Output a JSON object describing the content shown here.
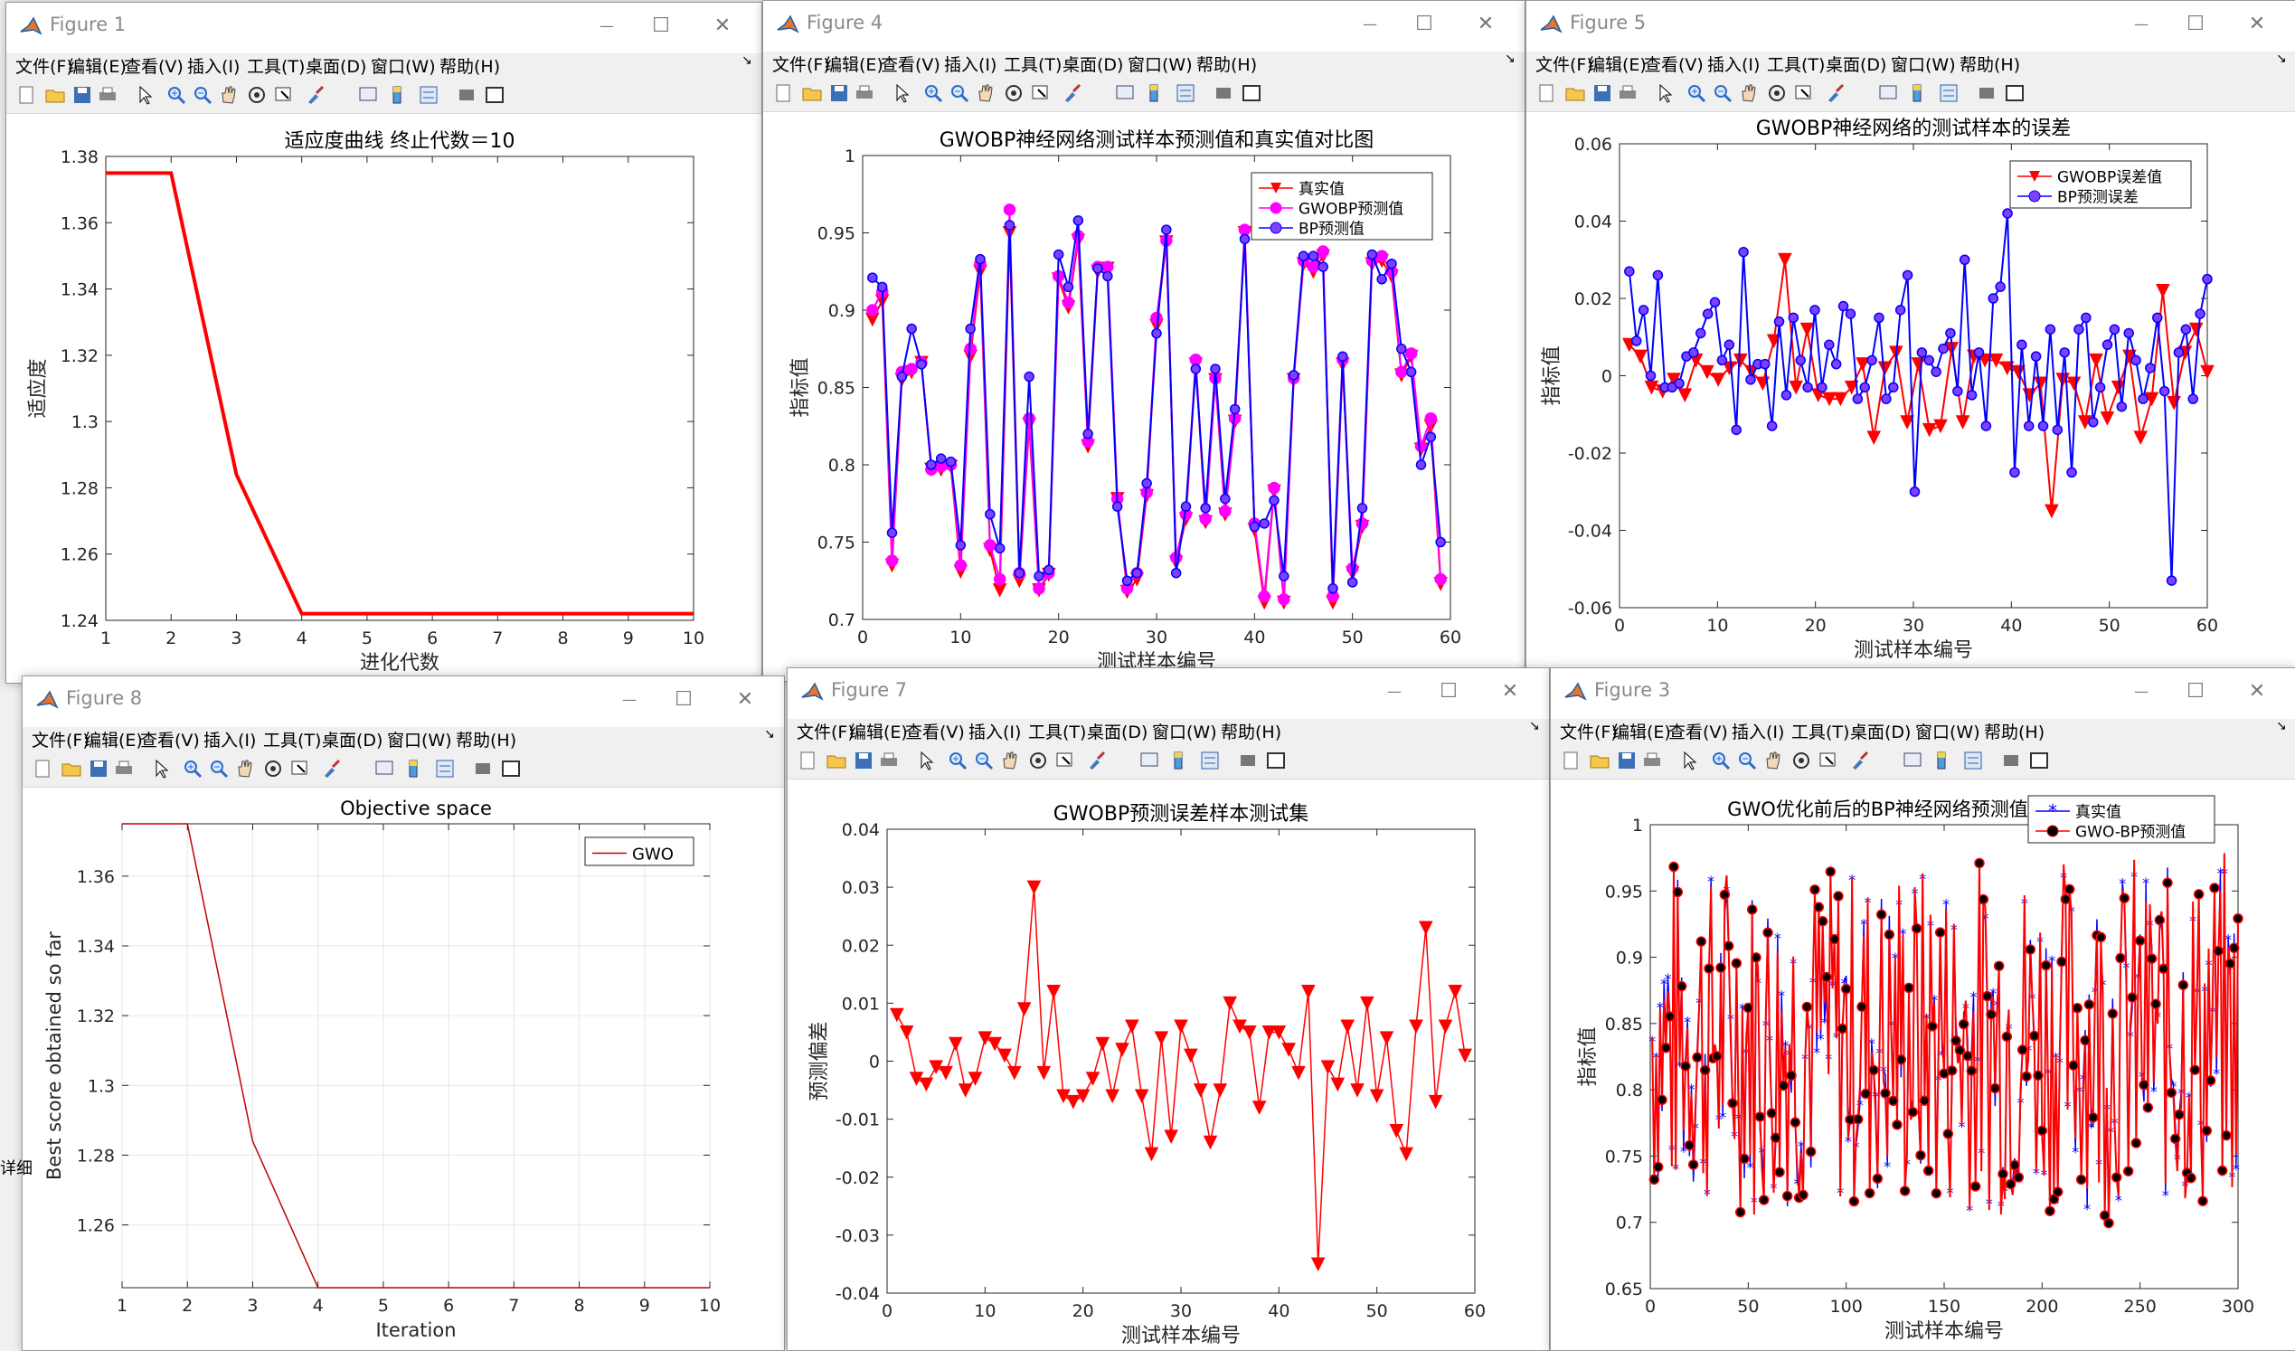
{
  "colors": {
    "red": "#ff0000",
    "magenta": "#ff00ff",
    "blue": "#0000ff",
    "darkred": "#c00000"
  },
  "menu": [
    "文件(F)",
    "编辑(E)",
    "查看(V)",
    "插入(I)",
    "工具(T)",
    "桌面(D)",
    "窗口(W)",
    "帮助(H)"
  ],
  "windows": {
    "fig1": {
      "title": "Figure 1"
    },
    "fig4": {
      "title": "Figure 4"
    },
    "fig5": {
      "title": "Figure 5"
    },
    "fig8": {
      "title": "Figure 8"
    },
    "fig7": {
      "title": "Figure 7"
    },
    "fig3": {
      "title": "Figure 3"
    }
  },
  "side_text": "详细",
  "chart_data": [
    {
      "id": "fig1",
      "type": "line",
      "title": "适应度曲线  终止代数＝10",
      "xlabel": "进化代数",
      "ylabel": "适应度",
      "xlim": [
        1,
        10
      ],
      "ylim": [
        1.24,
        1.38
      ],
      "xticks": [
        1,
        2,
        3,
        4,
        5,
        6,
        7,
        8,
        9,
        10
      ],
      "yticks": [
        1.24,
        1.26,
        1.28,
        1.3,
        1.32,
        1.34,
        1.36,
        1.38
      ],
      "x": [
        1,
        2,
        3,
        4,
        5,
        6,
        7,
        8,
        9,
        10
      ],
      "y": [
        1.375,
        1.375,
        1.284,
        1.242,
        1.242,
        1.242,
        1.242,
        1.242,
        1.242,
        1.242
      ]
    },
    {
      "id": "fig4",
      "type": "line",
      "title": "GWOBP神经网络测试样本预测值和真实值对比图",
      "xlabel": "测试样本编号",
      "ylabel": "指标值",
      "xlim": [
        0,
        60
      ],
      "ylim": [
        0.7,
        1
      ],
      "xticks": [
        0,
        10,
        20,
        30,
        40,
        50,
        60
      ],
      "yticks": [
        0.7,
        0.75,
        0.8,
        0.85,
        0.9,
        0.95,
        1
      ],
      "legend": [
        "真实值",
        "GWOBP预测值",
        "BP预测值"
      ],
      "series": [
        {
          "name": "真实值",
          "values": [
            0.894,
            0.906,
            0.735,
            0.855,
            0.86,
            0.866,
            0.797,
            0.797,
            0.799,
            0.731,
            0.87,
            0.925,
            0.745,
            0.719,
            0.95,
            0.725,
            0.826,
            0.719,
            0.729,
            0.92,
            0.902,
            0.945,
            0.812,
            0.925,
            0.927,
            0.778,
            0.718,
            0.726,
            0.78,
            0.89,
            0.944,
            0.737,
            0.765,
            0.865,
            0.763,
            0.855,
            0.768,
            0.828,
            0.95,
            0.758,
            0.711,
            0.783,
            0.711,
            0.855,
            0.93,
            0.925,
            0.935,
            0.711,
            0.865,
            0.73,
            0.76,
            0.93,
            0.932,
            0.922,
            0.858,
            0.87,
            0.81,
            0.825,
            0.723
          ]
        },
        {
          "name": "GWOBP预测值",
          "values": [
            0.9,
            0.912,
            0.738,
            0.86,
            0.862,
            0.866,
            0.797,
            0.799,
            0.8,
            0.735,
            0.875,
            0.93,
            0.748,
            0.726,
            0.965,
            0.73,
            0.83,
            0.72,
            0.73,
            0.922,
            0.905,
            0.948,
            0.815,
            0.928,
            0.928,
            0.778,
            0.72,
            0.73,
            0.782,
            0.895,
            0.945,
            0.74,
            0.768,
            0.868,
            0.765,
            0.856,
            0.77,
            0.83,
            0.952,
            0.762,
            0.715,
            0.785,
            0.713,
            0.856,
            0.932,
            0.928,
            0.938,
            0.715,
            0.868,
            0.733,
            0.762,
            0.932,
            0.935,
            0.925,
            0.86,
            0.872,
            0.812,
            0.83,
            0.726
          ]
        },
        {
          "name": "BP预测值",
          "values": [
            0.921,
            0.915,
            0.756,
            0.857,
            0.888,
            0.865,
            0.8,
            0.804,
            0.802,
            0.748,
            0.888,
            0.933,
            0.768,
            0.746,
            0.955,
            0.73,
            0.857,
            0.728,
            0.732,
            0.936,
            0.915,
            0.958,
            0.82,
            0.927,
            0.922,
            0.773,
            0.725,
            0.73,
            0.788,
            0.885,
            0.952,
            0.73,
            0.773,
            0.862,
            0.772,
            0.862,
            0.778,
            0.836,
            0.946,
            0.76,
            0.762,
            0.777,
            0.728,
            0.858,
            0.935,
            0.935,
            0.928,
            0.72,
            0.87,
            0.724,
            0.772,
            0.936,
            0.92,
            0.93,
            0.875,
            0.86,
            0.8,
            0.818,
            0.75
          ]
        }
      ]
    },
    {
      "id": "fig5",
      "type": "line",
      "title": "GWOBP神经网络的测试样本的误差",
      "xlabel": "测试样本编号",
      "ylabel": "指标值",
      "xlim": [
        0,
        60
      ],
      "ylim": [
        -0.06,
        0.06
      ],
      "xticks": [
        0,
        10,
        20,
        30,
        40,
        50,
        60
      ],
      "yticks": [
        -0.06,
        -0.04,
        -0.02,
        0,
        0.02,
        0.04,
        0.06
      ],
      "legend": [
        "GWOBP误差值",
        "BP预测误差"
      ],
      "series": [
        {
          "name": "GWOBP误差值",
          "values": [
            0.008,
            0.005,
            -0.003,
            -0.004,
            -0.001,
            -0.005,
            0.004,
            0.001,
            -0.001,
            0.002,
            0.004,
            0.001,
            -0.002,
            0.009,
            0.03,
            -0.003,
            0.012,
            -0.005,
            -0.006,
            -0.006,
            -0.003,
            0.003,
            -0.016,
            0.002,
            0.006,
            -0.012,
            0.003,
            -0.014,
            -0.013,
            0.007,
            -0.012,
            0.005,
            0.004,
            0.004,
            0.002,
            0.001,
            -0.005,
            -0.002,
            -0.035,
            -0.001,
            -0.002,
            -0.012,
            0.004,
            -0.011,
            -0.003,
            0.005,
            -0.016,
            -0.006,
            0.022,
            -0.007,
            0.006,
            0.012,
            0.001
          ]
        },
        {
          "name": "BP预测误差",
          "values": [
            0.027,
            0.009,
            0.017,
            0.0,
            0.026,
            -0.003,
            -0.003,
            -0.002,
            0.005,
            0.006,
            0.011,
            0.016,
            0.019,
            0.004,
            0.008,
            -0.014,
            0.032,
            -0.001,
            0.003,
            0.003,
            -0.013,
            0.014,
            -0.005,
            0.015,
            0.004,
            -0.003,
            0.017,
            -0.003,
            0.008,
            0.003,
            0.018,
            0.016,
            -0.006,
            -0.003,
            0.004,
            0.015,
            -0.006,
            -0.003,
            0.017,
            0.026,
            -0.03,
            0.006,
            0.004,
            0.001,
            0.007,
            0.011,
            -0.004,
            0.03,
            -0.005,
            0.006,
            -0.013,
            0.02,
            0.023,
            0.042,
            -0.025,
            0.008,
            -0.013,
            0.005,
            -0.013,
            0.012,
            -0.014,
            0.006,
            -0.025,
            0.012,
            0.015,
            -0.012,
            -0.003,
            0.008,
            0.012,
            -0.008,
            0.011,
            0.004,
            -0.006,
            0.002,
            0.015,
            -0.004,
            -0.053,
            0.006,
            0.012,
            -0.006,
            0.016,
            0.025
          ]
        }
      ]
    },
    {
      "id": "fig8",
      "type": "line",
      "title": "Objective space",
      "xlabel": "Iteration",
      "ylabel": "Best score obtained so far",
      "xlim": [
        1,
        10
      ],
      "ylim": [
        1.242,
        1.375
      ],
      "xticks": [
        1,
        2,
        3,
        4,
        5,
        6,
        7,
        8,
        9,
        10
      ],
      "yticks": [
        1.26,
        1.28,
        1.3,
        1.32,
        1.34,
        1.36
      ],
      "legend": [
        "GWO"
      ],
      "x": [
        1,
        2,
        3,
        4,
        5,
        6,
        7,
        8,
        9,
        10
      ],
      "y": [
        1.375,
        1.375,
        1.284,
        1.242,
        1.242,
        1.242,
        1.242,
        1.242,
        1.242,
        1.242
      ]
    },
    {
      "id": "fig7",
      "type": "line",
      "title": "GWOBP预测误差样本测试集",
      "xlabel": "测试样本编号",
      "ylabel": "预测偏差",
      "xlim": [
        0,
        60
      ],
      "ylim": [
        -0.04,
        0.04
      ],
      "xticks": [
        0,
        10,
        20,
        30,
        40,
        50,
        60
      ],
      "yticks": [
        -0.04,
        -0.03,
        -0.02,
        -0.01,
        0,
        0.01,
        0.02,
        0.03,
        0.04
      ],
      "values": [
        0.008,
        0.005,
        -0.003,
        -0.004,
        -0.001,
        -0.002,
        0.003,
        -0.005,
        -0.003,
        0.004,
        0.003,
        0.001,
        -0.002,
        0.009,
        0.03,
        -0.002,
        0.012,
        -0.006,
        -0.007,
        -0.006,
        -0.003,
        0.003,
        -0.006,
        0.002,
        0.006,
        -0.006,
        -0.016,
        0.004,
        -0.013,
        0.006,
        0.001,
        -0.005,
        -0.014,
        -0.005,
        0.01,
        0.006,
        0.005,
        -0.008,
        0.005,
        0.005,
        0.002,
        -0.002,
        0.012,
        -0.035,
        -0.001,
        -0.004,
        0.006,
        -0.005,
        0.01,
        -0.006,
        0.004,
        -0.012,
        -0.016,
        0.006,
        0.023,
        -0.007,
        0.006,
        0.012,
        0.001
      ]
    },
    {
      "id": "fig3",
      "type": "line",
      "title": "GWO优化前后的BP神经网络预测值和真实值对比图",
      "xlabel": "测试样本编号",
      "ylabel": "指标值",
      "xlim": [
        0,
        300
      ],
      "ylim": [
        0.65,
        1
      ],
      "xticks": [
        0,
        50,
        100,
        150,
        200,
        250,
        300
      ],
      "yticks": [
        0.65,
        0.7,
        0.75,
        0.8,
        0.85,
        0.9,
        0.95,
        1
      ],
      "legend": [
        "真实值",
        "GWO-BP预测值"
      ],
      "n": 300
    }
  ]
}
